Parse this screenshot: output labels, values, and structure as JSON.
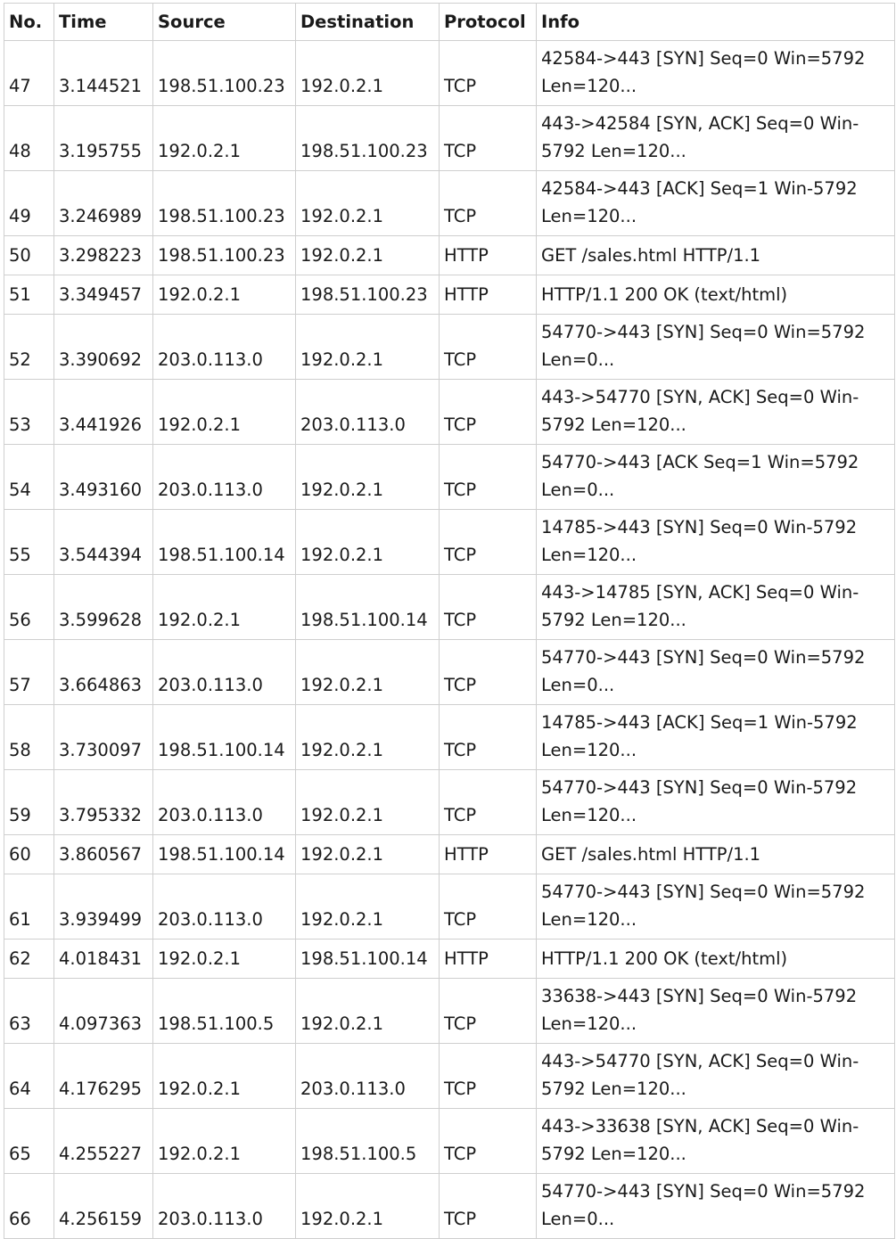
{
  "columns": [
    "No.",
    "Time",
    "Source",
    "Destination",
    "Protocol",
    "Info"
  ],
  "rows": [
    {
      "no": "47",
      "time": "3.144521",
      "source": "198.51.100.23",
      "destination": "192.0.2.1",
      "protocol": "TCP",
      "info": "42584->443 [SYN] Seq=0 Win=5792 Len=120..."
    },
    {
      "no": "48",
      "time": "3.195755",
      "source": "192.0.2.1",
      "destination": "198.51.100.23",
      "protocol": "TCP",
      "info": "443->42584 [SYN, ACK] Seq=0 Win-5792 Len=120..."
    },
    {
      "no": "49",
      "time": "3.246989",
      "source": "198.51.100.23",
      "destination": "192.0.2.1",
      "protocol": "TCP",
      "info": "42584->443 [ACK] Seq=1 Win-5792 Len=120..."
    },
    {
      "no": "50",
      "time": "3.298223",
      "source": "198.51.100.23",
      "destination": "192.0.2.1",
      "protocol": "HTTP",
      "info": "GET /sales.html HTTP/1.1"
    },
    {
      "no": "51",
      "time": "3.349457",
      "source": "192.0.2.1",
      "destination": "198.51.100.23",
      "protocol": "HTTP",
      "info": "HTTP/1.1 200 OK (text/html)"
    },
    {
      "no": "52",
      "time": "3.390692",
      "source": "203.0.113.0",
      "destination": "192.0.2.1",
      "protocol": "TCP",
      "info": "54770->443 [SYN] Seq=0 Win=5792 Len=0..."
    },
    {
      "no": "53",
      "time": "3.441926",
      "source": "192.0.2.1",
      "destination": "203.0.113.0",
      "protocol": "TCP",
      "info": "443->54770 [SYN, ACK] Seq=0 Win-5792 Len=120..."
    },
    {
      "no": "54",
      "time": "3.493160",
      "source": "203.0.113.0",
      "destination": "192.0.2.1",
      "protocol": "TCP",
      "info": "54770->443 [ACK Seq=1 Win=5792 Len=0..."
    },
    {
      "no": "55",
      "time": "3.544394",
      "source": "198.51.100.14",
      "destination": "192.0.2.1",
      "protocol": "TCP",
      "info": "14785->443 [SYN] Seq=0 Win-5792 Len=120..."
    },
    {
      "no": "56",
      "time": "3.599628",
      "source": "192.0.2.1",
      "destination": "198.51.100.14",
      "protocol": "TCP",
      "info": "443->14785 [SYN, ACK] Seq=0 Win-5792 Len=120..."
    },
    {
      "no": "57",
      "time": "3.664863",
      "source": "203.0.113.0",
      "destination": "192.0.2.1",
      "protocol": "TCP",
      "info": "54770->443 [SYN] Seq=0 Win=5792 Len=0..."
    },
    {
      "no": "58",
      "time": "3.730097",
      "source": "198.51.100.14",
      "destination": "192.0.2.1",
      "protocol": "TCP",
      "info": "14785->443 [ACK] Seq=1 Win-5792 Len=120..."
    },
    {
      "no": "59",
      "time": "3.795332",
      "source": "203.0.113.0",
      "destination": "192.0.2.1",
      "protocol": "TCP",
      "info": "54770->443 [SYN] Seq=0 Win-5792 Len=120..."
    },
    {
      "no": "60",
      "time": "3.860567",
      "source": "198.51.100.14",
      "destination": "192.0.2.1",
      "protocol": "HTTP",
      "info": "GET /sales.html HTTP/1.1"
    },
    {
      "no": "61",
      "time": "3.939499",
      "source": "203.0.113.0",
      "destination": "192.0.2.1",
      "protocol": "TCP",
      "info": "54770->443 [SYN] Seq=0 Win=5792 Len=120..."
    },
    {
      "no": "62",
      "time": "4.018431",
      "source": "192.0.2.1",
      "destination": "198.51.100.14",
      "protocol": "HTTP",
      "info": "HTTP/1.1 200 OK (text/html)"
    },
    {
      "no": "63",
      "time": "4.097363",
      "source": "198.51.100.5",
      "destination": "192.0.2.1",
      "protocol": "TCP",
      "info": "33638->443 [SYN] Seq=0 Win-5792 Len=120..."
    },
    {
      "no": "64",
      "time": "4.176295",
      "source": "192.0.2.1",
      "destination": "203.0.113.0",
      "protocol": "TCP",
      "info": "443->54770 [SYN, ACK] Seq=0 Win-5792 Len=120..."
    },
    {
      "no": "65",
      "time": "4.255227",
      "source": "192.0.2.1",
      "destination": "198.51.100.5",
      "protocol": "TCP",
      "info": "443->33638 [SYN, ACK] Seq=0 Win-5792 Len=120..."
    },
    {
      "no": "66",
      "time": "4.256159",
      "source": "203.0.113.0",
      "destination": "192.0.2.1",
      "protocol": "TCP",
      "info": "54770->443 [SYN] Seq=0 Win=5792 Len=0..."
    }
  ]
}
